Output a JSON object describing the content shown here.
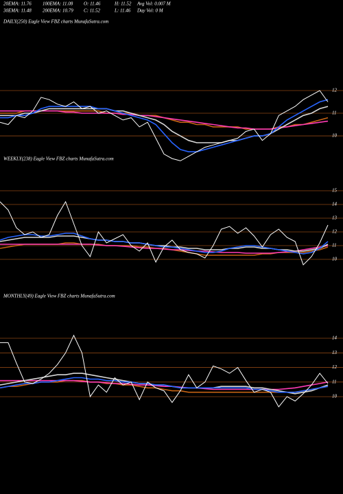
{
  "header": {
    "rows": [
      [
        "20EMA: 11.76",
        "100EMA: 11.08",
        "O: 11.46",
        "H: 11.52",
        "Avg Vol: 0.007 M"
      ],
      [
        "30EMA: 11.48",
        "200EMA: 10.79",
        "C: 11.52",
        "L: 11.46",
        "Day Vol: 0  M"
      ]
    ]
  },
  "chart_data": [
    {
      "type": "line",
      "title": "DAILY(250) Eagle  View  FBZ charts MunafaSutra.com",
      "ylim": [
        8.7,
        12.2
      ],
      "yticks": [
        10,
        11,
        12
      ],
      "grid": true,
      "series": [
        {
          "color": "#c86414",
          "values": [
            11.0,
            11.0,
            11.0,
            11.1,
            11.1,
            11.1,
            11.1,
            11.1,
            11.1,
            11.1,
            11.1,
            11.1,
            11.1,
            11.0,
            11.0,
            11.0,
            11.0,
            10.9,
            10.9,
            10.9,
            10.8,
            10.7,
            10.6,
            10.6,
            10.5,
            10.5,
            10.4,
            10.4,
            10.4,
            10.4,
            10.3,
            10.3,
            10.3,
            10.3,
            10.4,
            10.4,
            10.5,
            10.5,
            10.6,
            10.7,
            10.8
          ]
        },
        {
          "color": "#ff3cb4",
          "values": [
            11.1,
            11.1,
            11.1,
            11.1,
            11.1,
            11.1,
            11.1,
            11.1,
            11.05,
            11.05,
            11.0,
            11.0,
            11.0,
            11.0,
            11.0,
            10.95,
            10.95,
            10.9,
            10.9,
            10.85,
            10.8,
            10.75,
            10.7,
            10.65,
            10.6,
            10.55,
            10.5,
            10.45,
            10.4,
            10.35,
            10.35,
            10.3,
            10.3,
            10.3,
            10.35,
            10.4,
            10.45,
            10.5,
            10.55,
            10.6,
            10.65
          ]
        },
        {
          "color": "#d8d8d8",
          "values": [
            10.9,
            10.9,
            10.9,
            11.0,
            11.0,
            11.1,
            11.2,
            11.2,
            11.2,
            11.2,
            11.2,
            11.2,
            11.2,
            11.2,
            11.1,
            11.1,
            11.0,
            10.9,
            10.8,
            10.7,
            10.5,
            10.2,
            10.0,
            9.8,
            9.7,
            9.7,
            9.7,
            9.7,
            9.8,
            9.8,
            9.9,
            10.0,
            10.0,
            10.1,
            10.3,
            10.5,
            10.7,
            10.9,
            11.0,
            11.2,
            11.3
          ]
        },
        {
          "color": "#2864ff",
          "values": [
            10.8,
            10.8,
            10.9,
            10.9,
            11.0,
            11.2,
            11.3,
            11.3,
            11.3,
            11.3,
            11.3,
            11.3,
            11.2,
            11.2,
            11.1,
            11.0,
            10.9,
            10.8,
            10.7,
            10.5,
            10.1,
            9.7,
            9.4,
            9.3,
            9.3,
            9.4,
            9.5,
            9.6,
            9.7,
            9.8,
            9.9,
            10.0,
            10.0,
            10.1,
            10.4,
            10.7,
            10.9,
            11.1,
            11.3,
            11.5,
            11.6
          ]
        },
        {
          "color": "#ffffff",
          "values": [
            10.6,
            10.5,
            10.9,
            10.8,
            11.1,
            11.7,
            11.6,
            11.4,
            11.3,
            11.5,
            11.2,
            11.3,
            11.0,
            11.1,
            10.9,
            10.7,
            10.8,
            10.4,
            10.6,
            9.9,
            9.2,
            9.0,
            8.9,
            9.1,
            9.3,
            9.5,
            9.6,
            9.7,
            9.8,
            9.9,
            10.2,
            10.3,
            9.8,
            10.1,
            10.9,
            11.1,
            11.3,
            11.6,
            11.8,
            12.0,
            11.5
          ]
        }
      ]
    },
    {
      "type": "line",
      "title": "WEEKLY(238) Eagle  View  FBZ charts MunafaSutra.com",
      "ylim": [
        8.8,
        15.2
      ],
      "yticks": [
        10,
        11,
        12,
        13,
        14,
        15
      ],
      "grid": true,
      "series": [
        {
          "color": "#c86414",
          "values": [
            10.8,
            10.9,
            11.0,
            11.1,
            11.1,
            11.1,
            11.1,
            11.1,
            11.2,
            11.2,
            11.1,
            11.1,
            11.1,
            11.0,
            11.0,
            11.0,
            11.0,
            10.9,
            10.9,
            10.8,
            10.8,
            10.7,
            10.6,
            10.5,
            10.4,
            10.3,
            10.3,
            10.3,
            10.3,
            10.3,
            10.3,
            10.3,
            10.4,
            10.4,
            10.5,
            10.5,
            10.5,
            10.5,
            10.6,
            10.7,
            10.9
          ]
        },
        {
          "color": "#ff3cb4",
          "values": [
            11.1,
            11.1,
            11.1,
            11.1,
            11.1,
            11.1,
            11.1,
            11.1,
            11.1,
            11.1,
            11.1,
            11.1,
            11.05,
            11.0,
            11.0,
            10.95,
            10.9,
            10.85,
            10.8,
            10.8,
            10.75,
            10.7,
            10.7,
            10.65,
            10.6,
            10.6,
            10.55,
            10.5,
            10.5,
            10.5,
            10.45,
            10.45,
            10.45,
            10.45,
            10.5,
            10.55,
            10.6,
            10.7,
            10.8,
            10.9,
            11.0
          ]
        },
        {
          "color": "#d8d8d8",
          "values": [
            11.3,
            11.4,
            11.5,
            11.6,
            11.6,
            11.6,
            11.6,
            11.7,
            11.7,
            11.7,
            11.6,
            11.5,
            11.4,
            11.4,
            11.3,
            11.3,
            11.2,
            11.2,
            11.1,
            11.0,
            11.0,
            10.9,
            10.9,
            10.8,
            10.8,
            10.7,
            10.7,
            10.7,
            10.8,
            10.8,
            10.9,
            10.9,
            10.8,
            10.8,
            10.7,
            10.7,
            10.6,
            10.6,
            10.7,
            10.8,
            11.1
          ]
        },
        {
          "color": "#2864ff",
          "values": [
            11.4,
            11.6,
            11.7,
            11.8,
            11.8,
            11.7,
            11.7,
            11.8,
            11.9,
            11.9,
            11.7,
            11.5,
            11.4,
            11.4,
            11.3,
            11.3,
            11.2,
            11.2,
            11.1,
            11.0,
            10.9,
            10.9,
            10.8,
            10.7,
            10.6,
            10.5,
            10.5,
            10.6,
            10.8,
            10.9,
            11.0,
            11.0,
            10.9,
            10.8,
            10.7,
            10.6,
            10.5,
            10.4,
            10.5,
            10.8,
            11.3
          ]
        },
        {
          "color": "#ffffff",
          "values": [
            14.2,
            13.6,
            12.3,
            11.8,
            12.0,
            11.6,
            11.8,
            13.2,
            14.2,
            12.6,
            11.0,
            10.2,
            12.0,
            11.2,
            11.5,
            11.8,
            11.0,
            10.6,
            11.2,
            9.8,
            10.9,
            11.4,
            10.7,
            10.5,
            10.4,
            10.1,
            11.0,
            12.2,
            12.4,
            11.9,
            12.3,
            11.7,
            10.9,
            11.8,
            12.2,
            11.6,
            11.3,
            9.6,
            10.2,
            11.2,
            12.5
          ]
        }
      ]
    },
    {
      "type": "line",
      "title": "MONTHLY(49) Eagle  View  FBZ charts MunafaSutra.com",
      "ylim": [
        8.5,
        14.5
      ],
      "yticks": [
        10,
        11,
        12,
        13,
        14
      ],
      "grid": true,
      "series": [
        {
          "color": "#c86414",
          "values": [
            10.6,
            10.7,
            10.7,
            10.8,
            10.9,
            11.0,
            11.0,
            11.0,
            11.1,
            11.1,
            11.1,
            11.0,
            11.0,
            10.9,
            10.9,
            10.8,
            10.8,
            10.7,
            10.6,
            10.6,
            10.5,
            10.4,
            10.4,
            10.3,
            10.3,
            10.3,
            10.3,
            10.3,
            10.3,
            10.3,
            10.3,
            10.3,
            10.3,
            10.3,
            10.3,
            10.3,
            10.3,
            10.4,
            10.5,
            10.6,
            10.7
          ]
        },
        {
          "color": "#ff3cb4",
          "values": [
            11.1,
            11.1,
            11.1,
            11.1,
            11.1,
            11.1,
            11.1,
            11.1,
            11.1,
            11.1,
            11.05,
            11.0,
            11.0,
            10.95,
            10.9,
            10.9,
            10.85,
            10.8,
            10.8,
            10.75,
            10.7,
            10.7,
            10.65,
            10.6,
            10.6,
            10.55,
            10.5,
            10.5,
            10.5,
            10.5,
            10.5,
            10.5,
            10.5,
            10.5,
            10.5,
            10.55,
            10.6,
            10.7,
            10.8,
            10.9,
            11.0
          ]
        },
        {
          "color": "#d8d8d8",
          "values": [
            10.8,
            10.9,
            11.0,
            11.1,
            11.2,
            11.3,
            11.4,
            11.5,
            11.5,
            11.6,
            11.6,
            11.5,
            11.4,
            11.3,
            11.2,
            11.1,
            11.0,
            10.9,
            10.9,
            10.8,
            10.8,
            10.7,
            10.6,
            10.6,
            10.6,
            10.6,
            10.6,
            10.7,
            10.7,
            10.7,
            10.7,
            10.6,
            10.6,
            10.5,
            10.4,
            10.3,
            10.2,
            10.3,
            10.4,
            10.6,
            10.8
          ]
        },
        {
          "color": "#2864ff",
          "values": [
            10.6,
            10.7,
            10.8,
            10.9,
            10.9,
            11.0,
            11.0,
            11.1,
            11.2,
            11.3,
            11.3,
            11.2,
            11.2,
            11.1,
            11.1,
            11.0,
            11.0,
            10.9,
            10.9,
            10.8,
            10.8,
            10.7,
            10.6,
            10.6,
            10.6,
            10.6,
            10.6,
            10.6,
            10.6,
            10.6,
            10.6,
            10.5,
            10.5,
            10.4,
            10.3,
            10.3,
            10.3,
            10.4,
            10.5,
            10.6,
            10.7
          ]
        },
        {
          "color": "#ffffff",
          "values": [
            13.7,
            13.7,
            12.3,
            11.0,
            10.9,
            11.2,
            11.6,
            12.2,
            13.0,
            14.2,
            13.0,
            10.0,
            10.8,
            10.3,
            11.3,
            10.8,
            11.0,
            9.8,
            11.0,
            10.6,
            10.4,
            9.6,
            10.4,
            11.5,
            10.6,
            11.0,
            12.1,
            11.9,
            11.6,
            12.0,
            11.1,
            10.3,
            10.5,
            10.3,
            9.3,
            10.0,
            9.7,
            10.2,
            10.8,
            11.6,
            10.9
          ]
        }
      ]
    }
  ]
}
